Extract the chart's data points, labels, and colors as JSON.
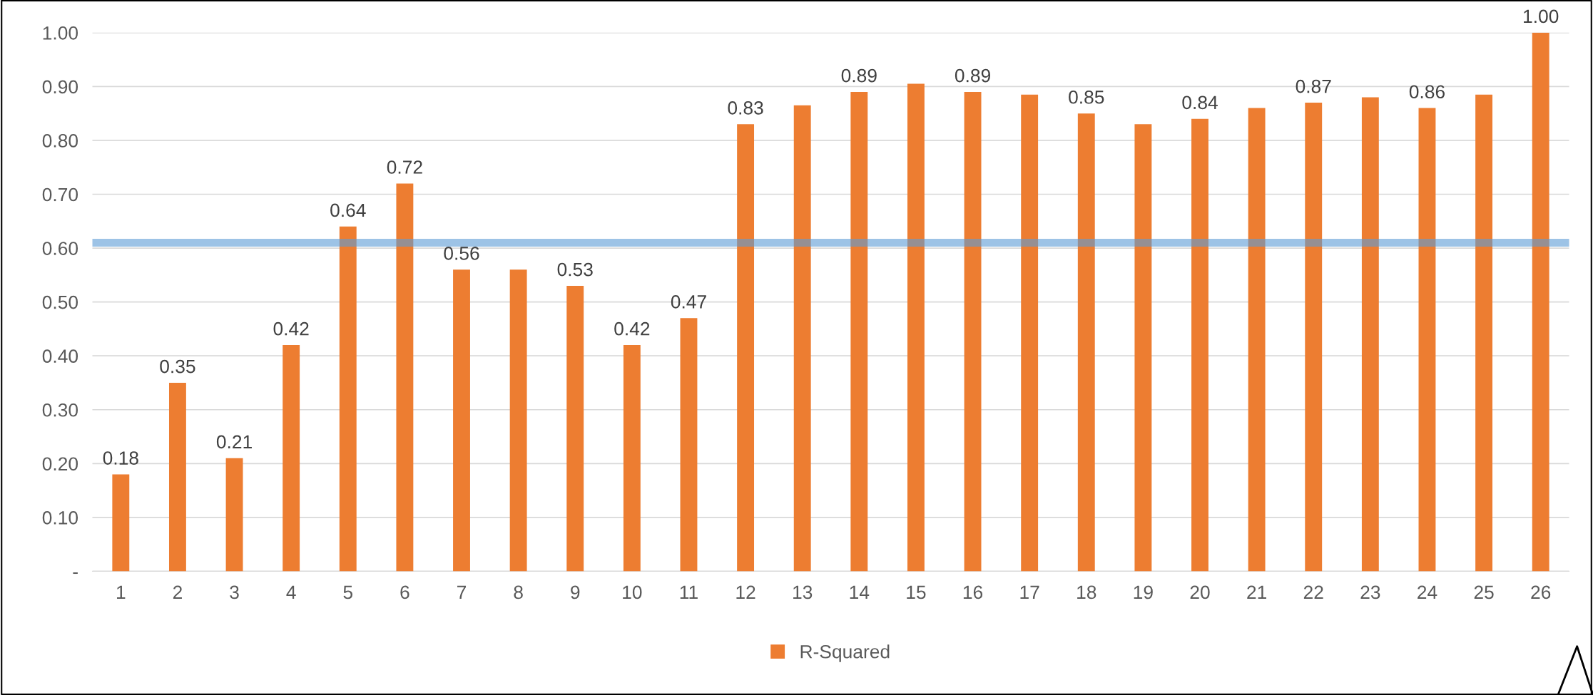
{
  "chart_data": {
    "type": "bar",
    "categories": [
      "1",
      "2",
      "3",
      "4",
      "5",
      "6",
      "7",
      "8",
      "9",
      "10",
      "11",
      "12",
      "13",
      "14",
      "15",
      "16",
      "17",
      "18",
      "19",
      "20",
      "21",
      "22",
      "23",
      "24",
      "25",
      "26"
    ],
    "series": [
      {
        "name": "R-Squared",
        "color": "#ed7d31",
        "values": [
          0.18,
          0.35,
          0.21,
          0.42,
          0.64,
          0.72,
          0.56,
          0.56,
          0.53,
          0.42,
          0.47,
          0.83,
          0.865,
          0.89,
          0.905,
          0.89,
          0.885,
          0.85,
          0.83,
          0.84,
          0.86,
          0.87,
          0.88,
          0.86,
          0.885,
          1.0
        ],
        "value_labels": [
          "0.18",
          "0.35",
          "0.21",
          "0.42",
          "0.64",
          "0.72",
          "0.56",
          null,
          "0.53",
          "0.42",
          "0.47",
          "0.83",
          null,
          "0.89",
          null,
          "0.89",
          null,
          "0.85",
          null,
          "0.84",
          null,
          "0.87",
          null,
          "0.86",
          null,
          "1.00"
        ]
      }
    ],
    "ylim": [
      0,
      1.0
    ],
    "yticks": [
      {
        "value": 0,
        "label": "-"
      },
      {
        "value": 0.1,
        "label": "0.10"
      },
      {
        "value": 0.2,
        "label": "0.20"
      },
      {
        "value": 0.3,
        "label": "0.30"
      },
      {
        "value": 0.4,
        "label": "0.40"
      },
      {
        "value": 0.5,
        "label": "0.50"
      },
      {
        "value": 0.6,
        "label": "0.60"
      },
      {
        "value": 0.7,
        "label": "0.70"
      },
      {
        "value": 0.8,
        "label": "0.80"
      },
      {
        "value": 0.9,
        "label": "0.90"
      },
      {
        "value": 1.0,
        "label": "1.00"
      }
    ],
    "ref_lines": [
      {
        "axis": "y",
        "value": 0.61,
        "label": null,
        "color": "#5b9bd5"
      }
    ],
    "grid": "y",
    "legend": "bottom"
  }
}
